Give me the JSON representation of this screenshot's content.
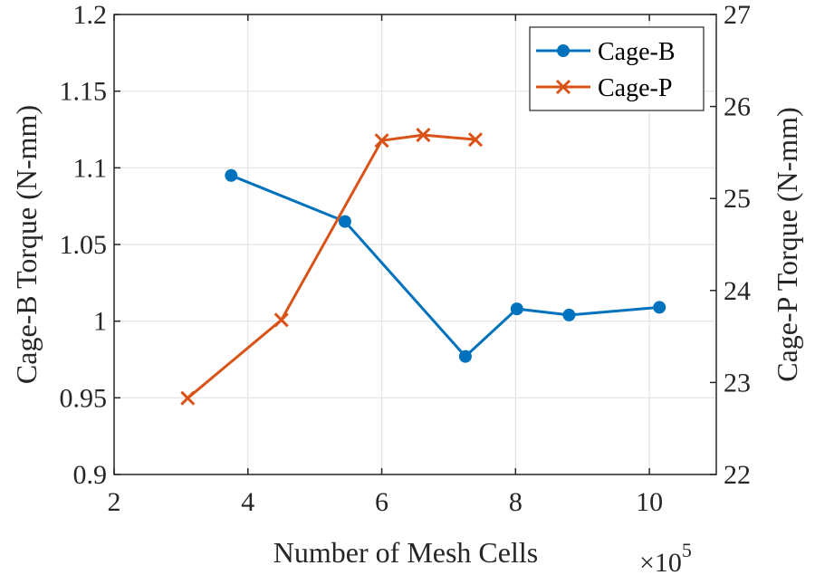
{
  "chart_data": {
    "type": "line",
    "xlabel": "Number of Mesh Cells",
    "xmultiplier_base": "×10",
    "xmultiplier_exp": "5",
    "ylabel_left": "Cage-B Torque (N-mm)",
    "ylabel_right": "Cage-P Torque (N-mm)",
    "xlim": [
      2,
      11
    ],
    "ylim_left": [
      0.9,
      1.2
    ],
    "ylim_right": [
      22,
      27
    ],
    "xticks": [
      "2",
      "4",
      "6",
      "8",
      "10"
    ],
    "xtick_values": [
      2,
      4,
      6,
      8,
      10
    ],
    "yticks_left": [
      "0.9",
      "0.95",
      "1",
      "1.05",
      "1.1",
      "1.15",
      "1.2"
    ],
    "ytick_values_left": [
      0.9,
      0.95,
      1.0,
      1.05,
      1.1,
      1.15,
      1.2
    ],
    "yticks_right": [
      "22",
      "23",
      "24",
      "25",
      "26",
      "27"
    ],
    "ytick_values_right": [
      22,
      23,
      24,
      25,
      26,
      27
    ],
    "grid": true,
    "legend_position": "top-right",
    "series": [
      {
        "name": "Cage-B",
        "axis": "left",
        "marker": "circle",
        "color": "#0072BD",
        "x": [
          3.75,
          5.45,
          7.25,
          8.02,
          8.8,
          10.15
        ],
        "y": [
          1.095,
          1.065,
          0.977,
          1.008,
          1.004,
          1.009
        ]
      },
      {
        "name": "Cage-P",
        "axis": "right",
        "marker": "x",
        "color": "#D95319",
        "x": [
          3.1,
          4.5,
          6.0,
          6.62,
          7.4
        ],
        "y": [
          22.83,
          23.68,
          25.63,
          25.69,
          25.64
        ]
      }
    ]
  }
}
